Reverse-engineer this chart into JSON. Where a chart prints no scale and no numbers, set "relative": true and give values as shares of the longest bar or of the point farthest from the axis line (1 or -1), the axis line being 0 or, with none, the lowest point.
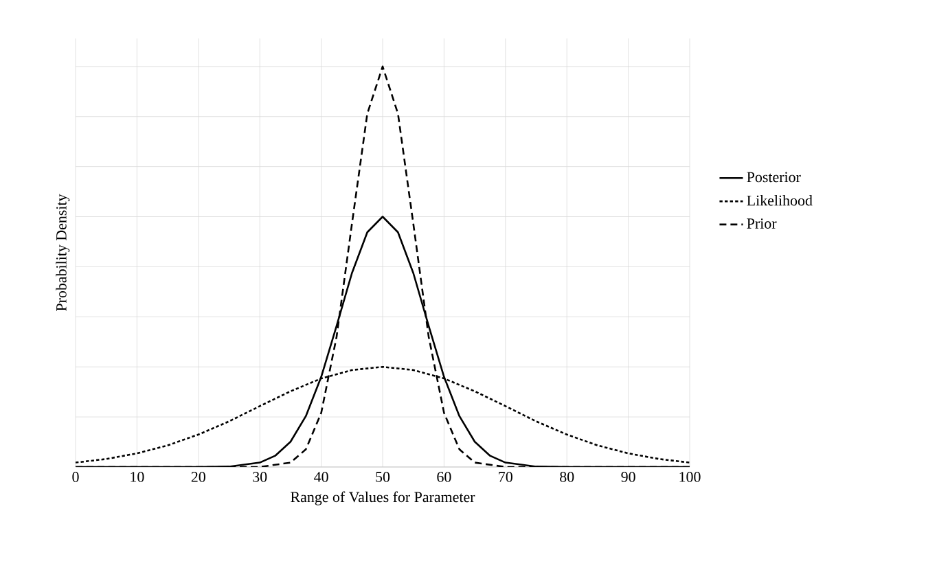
{
  "chart_data": {
    "type": "line",
    "relative": true,
    "xlabel": "Range of Values for Parameter",
    "ylabel": "Probability Density",
    "xlim": [
      0,
      100
    ],
    "xticks": [
      0,
      10,
      20,
      30,
      40,
      50,
      60,
      70,
      80,
      90,
      100
    ],
    "grid": true,
    "legend": "right",
    "marker": "none",
    "series": [
      {
        "name": "Posterior",
        "color": "#000000",
        "line_style": "solid",
        "x": [
          0,
          20,
          25,
          30,
          32.5,
          35,
          37.5,
          40,
          42.5,
          45,
          47.5,
          50,
          52.5,
          55,
          57.5,
          60,
          62.5,
          65,
          67.5,
          70,
          75,
          80,
          100
        ],
        "values": [
          0,
          0,
          0.001,
          0.011,
          0.028,
          0.063,
          0.127,
          0.225,
          0.352,
          0.484,
          0.586,
          0.625,
          0.586,
          0.484,
          0.352,
          0.225,
          0.127,
          0.063,
          0.028,
          0.011,
          0.001,
          0,
          0
        ]
      },
      {
        "name": "Likelihood",
        "color": "#000000",
        "line_style": "dotted",
        "x": [
          0,
          5,
          10,
          15,
          20,
          25,
          30,
          35,
          40,
          45,
          50,
          55,
          60,
          65,
          70,
          75,
          80,
          85,
          90,
          95,
          100
        ],
        "values": [
          0.011,
          0.02,
          0.034,
          0.054,
          0.081,
          0.114,
          0.152,
          0.189,
          0.221,
          0.242,
          0.25,
          0.242,
          0.221,
          0.189,
          0.152,
          0.114,
          0.081,
          0.054,
          0.034,
          0.02,
          0.011
        ]
      },
      {
        "name": "Prior",
        "color": "#000000",
        "line_style": "dashed",
        "x": [
          0,
          30,
          35,
          37.5,
          40,
          42.5,
          45,
          47.5,
          50,
          52.5,
          55,
          57.5,
          60,
          62.5,
          65,
          70,
          100
        ],
        "values": [
          0,
          0,
          0.011,
          0.044,
          0.135,
          0.325,
          0.607,
          0.882,
          1,
          0.882,
          0.607,
          0.325,
          0.135,
          0.044,
          0.011,
          0,
          0
        ]
      }
    ]
  }
}
